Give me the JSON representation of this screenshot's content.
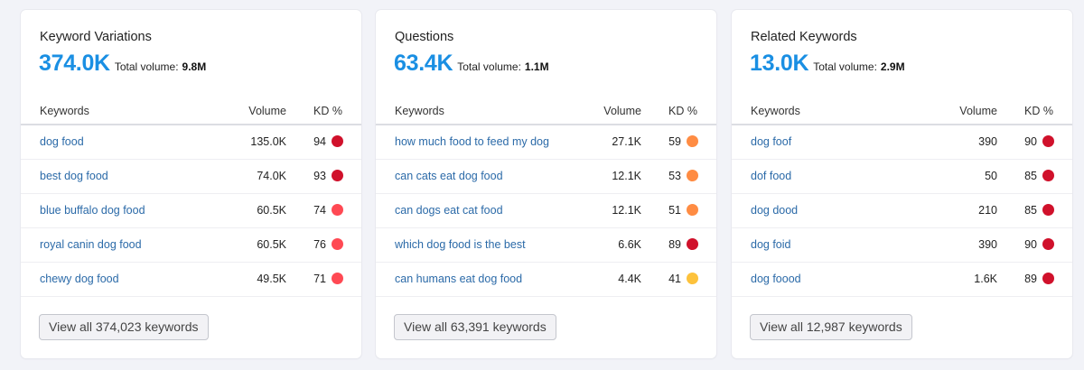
{
  "cards": [
    {
      "title": "Keyword Variations",
      "count": "374.0K",
      "total_volume_label": "Total volume:",
      "total_volume": "9.8M",
      "columns": {
        "keyword": "Keywords",
        "volume": "Volume",
        "kd": "KD %"
      },
      "rows": [
        {
          "keyword": "dog food",
          "volume": "135.0K",
          "kd": "94",
          "kd_color": "#d0112b"
        },
        {
          "keyword": "best dog food",
          "volume": "74.0K",
          "kd": "93",
          "kd_color": "#d0112b"
        },
        {
          "keyword": "blue buffalo dog food",
          "volume": "60.5K",
          "kd": "74",
          "kd_color": "#ff4953"
        },
        {
          "keyword": "royal canin dog food",
          "volume": "60.5K",
          "kd": "76",
          "kd_color": "#ff4953"
        },
        {
          "keyword": "chewy dog food",
          "volume": "49.5K",
          "kd": "71",
          "kd_color": "#ff4953"
        }
      ],
      "view_all_label": "View all 374,023 keywords"
    },
    {
      "title": "Questions",
      "count": "63.4K",
      "total_volume_label": "Total volume:",
      "total_volume": "1.1M",
      "columns": {
        "keyword": "Keywords",
        "volume": "Volume",
        "kd": "KD %"
      },
      "rows": [
        {
          "keyword": "how much food to feed my dog",
          "volume": "27.1K",
          "kd": "59",
          "kd_color": "#ff8c43"
        },
        {
          "keyword": "can cats eat dog food",
          "volume": "12.1K",
          "kd": "53",
          "kd_color": "#ff8c43"
        },
        {
          "keyword": "can dogs eat cat food",
          "volume": "12.1K",
          "kd": "51",
          "kd_color": "#ff8c43"
        },
        {
          "keyword": "which dog food is the best",
          "volume": "6.6K",
          "kd": "89",
          "kd_color": "#d0112b"
        },
        {
          "keyword": "can humans eat dog food",
          "volume": "4.4K",
          "kd": "41",
          "kd_color": "#fdc23c"
        }
      ],
      "view_all_label": "View all 63,391 keywords"
    },
    {
      "title": "Related Keywords",
      "count": "13.0K",
      "total_volume_label": "Total volume:",
      "total_volume": "2.9M",
      "columns": {
        "keyword": "Keywords",
        "volume": "Volume",
        "kd": "KD %"
      },
      "rows": [
        {
          "keyword": "dog foof",
          "volume": "390",
          "kd": "90",
          "kd_color": "#d0112b"
        },
        {
          "keyword": "dof food",
          "volume": "50",
          "kd": "85",
          "kd_color": "#d0112b"
        },
        {
          "keyword": "dog dood",
          "volume": "210",
          "kd": "85",
          "kd_color": "#d0112b"
        },
        {
          "keyword": "dog foid",
          "volume": "390",
          "kd": "90",
          "kd_color": "#d0112b"
        },
        {
          "keyword": "dog foood",
          "volume": "1.6K",
          "kd": "89",
          "kd_color": "#d0112b"
        }
      ],
      "view_all_label": "View all 12,987 keywords"
    }
  ]
}
